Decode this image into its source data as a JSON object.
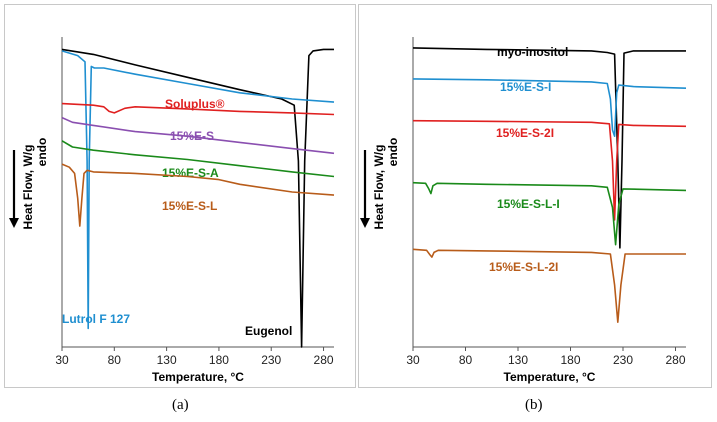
{
  "panel_labels": [
    "(a)",
    "(b)"
  ],
  "chart_data": [
    {
      "type": "line",
      "panel": "(a)",
      "xlabel": "Temperature, °C",
      "ylabel": "Heat Flow, W/g",
      "ylabel_sub": "endo",
      "xlim": [
        30,
        290
      ],
      "xticks": [
        30,
        80,
        130,
        180,
        230,
        280
      ],
      "yticks_shown": false,
      "grid": false,
      "legend": "none",
      "series": [
        {
          "name": "Eugenol",
          "color": "#000000",
          "x": [
            30,
            60,
            100,
            150,
            200,
            240,
            252,
            256,
            259,
            262,
            266,
            270,
            280,
            290
          ],
          "y": [
            0.96,
            0.944,
            0.91,
            0.87,
            0.83,
            0.8,
            0.78,
            0.6,
            0.0,
            0.6,
            0.94,
            0.955,
            0.96,
            0.96
          ]
        },
        {
          "name": "Lutrol F 127",
          "color": "#1f8fd0",
          "x": [
            30,
            45,
            52,
            54,
            55,
            56,
            58,
            61,
            70,
            100,
            150,
            200,
            250,
            290
          ],
          "y": [
            0.955,
            0.94,
            0.92,
            0.6,
            0.06,
            0.6,
            0.905,
            0.9,
            0.9,
            0.88,
            0.85,
            0.82,
            0.8,
            0.79
          ]
        },
        {
          "name": "Soluplus®",
          "color": "#e02020",
          "x": [
            30,
            60,
            70,
            75,
            80,
            90,
            100,
            150,
            200,
            250,
            290
          ],
          "y": [
            0.785,
            0.78,
            0.775,
            0.76,
            0.755,
            0.77,
            0.775,
            0.768,
            0.76,
            0.755,
            0.75
          ]
        },
        {
          "name": "15%E-S",
          "color": "#8a4fb0",
          "x": [
            30,
            40,
            60,
            100,
            150,
            200,
            250,
            290
          ],
          "y": [
            0.74,
            0.725,
            0.715,
            0.695,
            0.68,
            0.66,
            0.64,
            0.625
          ]
        },
        {
          "name": "15%E-S-A",
          "color": "#1a8a1a",
          "x": [
            30,
            40,
            60,
            100,
            150,
            200,
            250,
            290
          ],
          "y": [
            0.665,
            0.645,
            0.635,
            0.62,
            0.605,
            0.585,
            0.565,
            0.55
          ]
        },
        {
          "name": "15%E-S-L",
          "color": "#b85c1a",
          "x": [
            30,
            37,
            42,
            45,
            47,
            49,
            51,
            54,
            60,
            100,
            150,
            180,
            200,
            250,
            290
          ],
          "y": [
            0.59,
            0.58,
            0.56,
            0.48,
            0.39,
            0.48,
            0.56,
            0.57,
            0.565,
            0.56,
            0.55,
            0.54,
            0.525,
            0.5,
            0.49
          ]
        }
      ]
    },
    {
      "type": "line",
      "panel": "(b)",
      "xlabel": "Temperature, °C",
      "ylabel": "Heat Flow, W/g",
      "ylabel_sub": "endo",
      "xlim": [
        30,
        290
      ],
      "xticks": [
        30,
        80,
        130,
        180,
        230,
        280
      ],
      "yticks_shown": false,
      "grid": false,
      "legend": "none",
      "series": [
        {
          "name": "myo-inositol",
          "color": "#000000",
          "x": [
            30,
            100,
            200,
            215,
            222,
            225,
            227,
            229,
            231,
            240,
            290
          ],
          "y": [
            0.965,
            0.96,
            0.955,
            0.95,
            0.945,
            0.6,
            0.32,
            0.6,
            0.948,
            0.955,
            0.955
          ]
        },
        {
          "name": "15%E-S-I",
          "color": "#1f8fd0",
          "x": [
            30,
            100,
            200,
            215,
            218,
            220,
            222,
            224,
            226,
            240,
            290
          ],
          "y": [
            0.865,
            0.862,
            0.855,
            0.85,
            0.8,
            0.7,
            0.68,
            0.82,
            0.845,
            0.84,
            0.835
          ]
        },
        {
          "name": "15%E-S-2I",
          "color": "#e02020",
          "x": [
            30,
            100,
            200,
            217,
            220,
            222,
            224,
            226,
            240,
            290
          ],
          "y": [
            0.73,
            0.728,
            0.725,
            0.72,
            0.6,
            0.41,
            0.6,
            0.718,
            0.715,
            0.712
          ]
        },
        {
          "name": "15%E-S-L-I",
          "color": "#1a8a1a",
          "x": [
            30,
            42,
            45,
            47,
            49,
            53,
            100,
            200,
            215,
            220,
            223,
            226,
            230,
            290
          ],
          "y": [
            0.53,
            0.528,
            0.51,
            0.495,
            0.52,
            0.528,
            0.525,
            0.52,
            0.515,
            0.45,
            0.33,
            0.46,
            0.51,
            0.505
          ]
        },
        {
          "name": "15%E-S-L-2I",
          "color": "#b85c1a",
          "x": [
            30,
            43,
            46,
            48,
            50,
            54,
            100,
            200,
            218,
            222,
            225,
            228,
            232,
            290
          ],
          "y": [
            0.315,
            0.312,
            0.298,
            0.29,
            0.305,
            0.312,
            0.31,
            0.305,
            0.3,
            0.2,
            0.08,
            0.2,
            0.3,
            0.3
          ]
        }
      ]
    }
  ]
}
